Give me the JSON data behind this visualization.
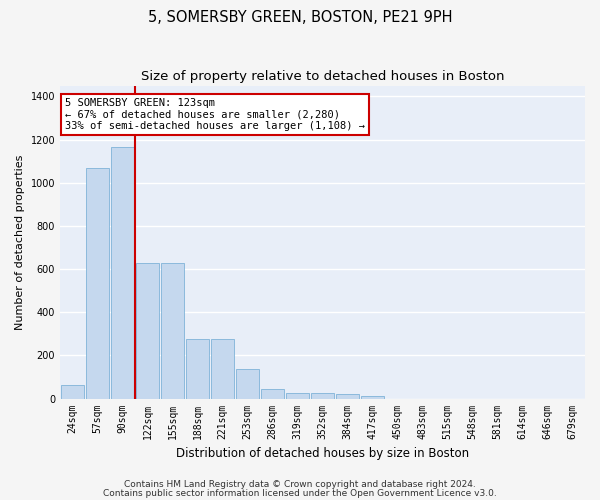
{
  "title": "5, SOMERSBY GREEN, BOSTON, PE21 9PH",
  "subtitle": "Size of property relative to detached houses in Boston",
  "xlabel": "Distribution of detached houses by size in Boston",
  "ylabel": "Number of detached properties",
  "categories": [
    "24sqm",
    "57sqm",
    "90sqm",
    "122sqm",
    "155sqm",
    "188sqm",
    "221sqm",
    "253sqm",
    "286sqm",
    "319sqm",
    "352sqm",
    "384sqm",
    "417sqm",
    "450sqm",
    "483sqm",
    "515sqm",
    "548sqm",
    "581sqm",
    "614sqm",
    "646sqm",
    "679sqm"
  ],
  "values": [
    62,
    1070,
    1165,
    630,
    630,
    275,
    275,
    135,
    45,
    25,
    25,
    20,
    10,
    0,
    0,
    0,
    0,
    0,
    0,
    0,
    0
  ],
  "bar_color": "#c5d8ee",
  "bar_edge_color": "#7fb3d8",
  "red_line_index": 2,
  "annotation_line1": "5 SOMERSBY GREEN: 123sqm",
  "annotation_line2": "← 67% of detached houses are smaller (2,280)",
  "annotation_line3": "33% of semi-detached houses are larger (1,108) →",
  "annotation_box_facecolor": "#ffffff",
  "annotation_box_edgecolor": "#cc0000",
  "ylim": [
    0,
    1450
  ],
  "yticks": [
    0,
    200,
    400,
    600,
    800,
    1000,
    1200,
    1400
  ],
  "plot_bg_color": "#e8eef8",
  "grid_color": "#ffffff",
  "fig_bg_color": "#f5f5f5",
  "footer_line1": "Contains HM Land Registry data © Crown copyright and database right 2024.",
  "footer_line2": "Contains public sector information licensed under the Open Government Licence v3.0.",
  "title_fontsize": 10.5,
  "subtitle_fontsize": 9.5,
  "xlabel_fontsize": 8.5,
  "ylabel_fontsize": 8,
  "tick_fontsize": 7,
  "annotation_fontsize": 7.5,
  "footer_fontsize": 6.5
}
